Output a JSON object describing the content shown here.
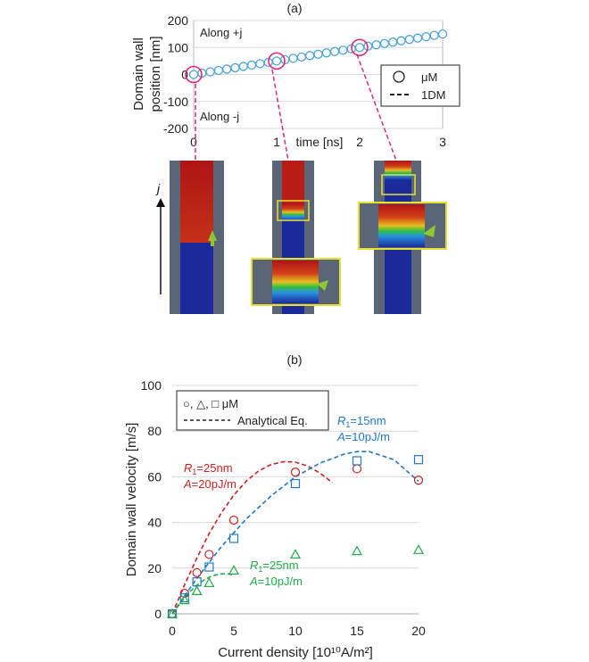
{
  "chart_data": [
    {
      "type": "line",
      "panel_label": "(a)",
      "ylabel_line1": "Domain wall",
      "ylabel_line2": "position [nm]",
      "xlabel": "time [ns]",
      "x_ticks": [
        "0",
        "1",
        "2",
        "3"
      ],
      "y_ticks": [
        "200",
        "100",
        "0",
        "-100",
        "-200"
      ],
      "xlim": [
        0,
        3
      ],
      "ylim": [
        -200,
        200
      ],
      "annotation_top": "Along +j",
      "annotation_bottom": "Along -j",
      "legend": [
        "μM",
        "1DM"
      ],
      "series": [
        {
          "name": "μM",
          "marker": "circle",
          "x": [
            0,
            0.1,
            0.2,
            0.3,
            0.4,
            0.5,
            0.6,
            0.7,
            0.8,
            0.9,
            1.0,
            1.1,
            1.2,
            1.3,
            1.4,
            1.5,
            1.6,
            1.7,
            1.8,
            1.9,
            2.0,
            2.1,
            2.2,
            2.3,
            2.4,
            2.5,
            2.6,
            2.7,
            2.8,
            2.9,
            3.0
          ],
          "y": [
            0,
            5,
            10,
            15,
            20,
            25,
            30,
            35,
            40,
            45,
            50,
            55,
            60,
            65,
            70,
            75,
            80,
            85,
            90,
            95,
            100,
            105,
            110,
            115,
            120,
            125,
            130,
            135,
            140,
            145,
            150
          ]
        },
        {
          "name": "1DM",
          "style": "dashed",
          "x": [
            0,
            3
          ],
          "y": [
            0,
            150
          ]
        }
      ],
      "highlighted_times": [
        0,
        1,
        2
      ],
      "snapshot_axis_label": "j"
    },
    {
      "type": "scatter",
      "panel_label": "(b)",
      "xlabel": "Current density [10¹⁰A/m²]",
      "ylabel": "Domain wall velocity [m/s]",
      "x_ticks": [
        "0",
        "5",
        "10",
        "15",
        "20"
      ],
      "y_ticks": [
        "0",
        "20",
        "40",
        "60",
        "80",
        "100"
      ],
      "xlim": [
        0,
        20
      ],
      "ylim": [
        0,
        100
      ],
      "legend_markers": "○, △, □ μM",
      "legend_line": "Analytical Eq.",
      "colors": {
        "red": "#cc1f1f",
        "blue": "#1f78c8",
        "green": "#1faa4a"
      },
      "series": [
        {
          "name": "R1=25nm A=20pJ/m",
          "color": "red",
          "marker": "circle",
          "x": [
            0,
            1,
            2,
            3,
            5,
            10,
            15,
            20
          ],
          "y": [
            0,
            9,
            18,
            26,
            41,
            62,
            63.5,
            58.5
          ],
          "curve_x": [
            0,
            1,
            2,
            3,
            4,
            5,
            6,
            7,
            8,
            9,
            10,
            11,
            12,
            13
          ],
          "curve_y": [
            0,
            12.6,
            24.4,
            35.2,
            44.3,
            52.0,
            58.0,
            62.5,
            65.3,
            66.6,
            66.4,
            64.7,
            61.6,
            57.5
          ]
        },
        {
          "name": "R1=15nm A=10pJ/m",
          "color": "blue",
          "marker": "square",
          "x": [
            0,
            1,
            2,
            3,
            5,
            10,
            15,
            20
          ],
          "y": [
            0,
            7,
            14,
            20.5,
            33,
            57,
            67,
            67.5
          ],
          "curve_x": [
            0,
            2,
            4,
            6,
            8,
            10,
            12,
            14,
            15,
            16,
            18,
            20
          ],
          "curve_y": [
            0,
            15.5,
            29.5,
            41.5,
            51.5,
            60,
            66,
            70,
            71,
            71,
            67.5,
            58
          ]
        },
        {
          "name": "R1=25nm A=10pJ/m",
          "color": "green",
          "marker": "triangle",
          "x": [
            0,
            1,
            2,
            3,
            5,
            10,
            15,
            20
          ],
          "y": [
            0,
            6,
            10,
            13.5,
            19,
            26,
            27.5,
            28
          ],
          "curve_x": [
            0,
            0.5,
            1,
            1.5,
            2,
            2.5,
            3,
            3.5,
            4,
            4.5,
            5
          ],
          "curve_y": [
            0,
            3.5,
            7,
            10,
            12.5,
            14.5,
            16,
            17,
            17.5,
            17.5,
            17
          ]
        }
      ],
      "annotations": [
        {
          "r": "R",
          "sub": "1",
          "r_value": "=25nm",
          "a": "A",
          "a_value": "=20pJ/m",
          "color": "red"
        },
        {
          "r": "R",
          "sub": "1",
          "r_value": "=15nm",
          "a": "A",
          "a_value": "=10pJ/m",
          "color": "blue"
        },
        {
          "r": "R",
          "sub": "1",
          "r_value": "=25nm",
          "a": "A",
          "a_value": "=10pJ/m",
          "color": "green"
        }
      ]
    }
  ]
}
